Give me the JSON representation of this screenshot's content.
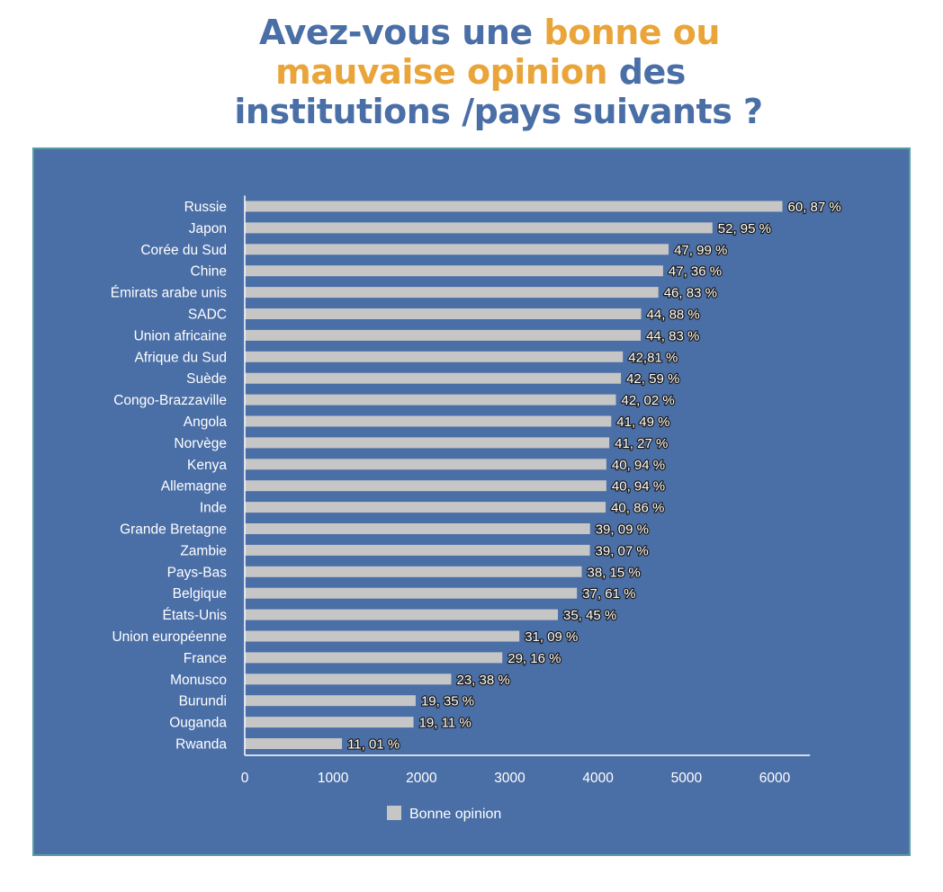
{
  "title": {
    "part1": "Avez-vous une ",
    "part2": "bonne ou",
    "part3": "mauvaise opinion",
    "part4": " des",
    "part5": "institutions /pays suivants ?"
  },
  "colors": {
    "panel": "#4a6ea6",
    "bar": "#c6c6c6",
    "title_blue": "#4a6ea6",
    "title_orange": "#e9a53a"
  },
  "chart_data": {
    "type": "bar",
    "orientation": "horizontal",
    "categories": [
      "Russie",
      "Japon",
      "Corée du Sud",
      "Chine",
      "Émirats arabe unis",
      "SADC",
      "Union africaine",
      "Afrique du Sud",
      "Suède",
      "Congo-Brazzaville",
      "Angola",
      "Norvège",
      "Kenya",
      "Allemagne",
      "Inde",
      "Grande Bretagne",
      "Zambie",
      "Pays-Bas",
      "Belgique",
      "États-Unis",
      "Union européenne",
      "France",
      "Monusco",
      "Burundi",
      "Ouganda",
      "Rwanda"
    ],
    "series": [
      {
        "name": "Bonne opinion",
        "values": [
          6087,
          5295,
          4799,
          4736,
          4683,
          4488,
          4483,
          4281,
          4259,
          4202,
          4149,
          4127,
          4094,
          4094,
          4086,
          3909,
          3907,
          3815,
          3761,
          3545,
          3109,
          2916,
          2338,
          1935,
          1911,
          1101
        ],
        "labels": [
          "60, 87 %",
          "52, 95 %",
          "47, 99 %",
          "47, 36 %",
          "46, 83 %",
          "44, 88 %",
          "44, 83 %",
          "42,81 %",
          "42, 59 %",
          "42, 02 %",
          "41, 49 %",
          "41, 27 %",
          "40, 94 %",
          "40, 94 %",
          "40, 86 %",
          "39, 09 %",
          "39, 07 %",
          "38, 15 %",
          "37, 61 %",
          "35, 45 %",
          "31, 09 %",
          "29, 16 %",
          "23, 38 %",
          "19, 35 %",
          "19, 11 %",
          "11, 01 %"
        ]
      }
    ],
    "x_ticks": [
      "0",
      "1000",
      "2000",
      "3000",
      "4000",
      "5000",
      "6000"
    ],
    "xlim": [
      0,
      6400
    ],
    "grid": false,
    "legend": "bottom-left"
  }
}
